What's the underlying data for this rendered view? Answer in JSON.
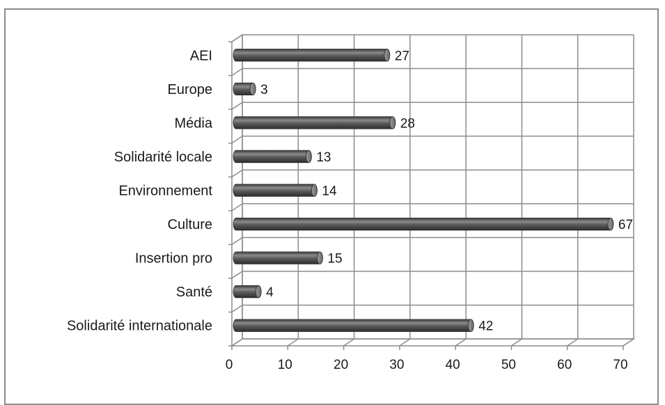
{
  "chart_data": {
    "type": "bar",
    "orientation": "horizontal",
    "style": "3d-cylinder",
    "categories": [
      "AEI",
      "Europe",
      "Média",
      "Solidarité locale",
      "Environnement",
      "Culture",
      "Insertion pro",
      "Santé",
      "Solidarité internationale"
    ],
    "values": [
      27,
      3,
      28,
      13,
      14,
      67,
      15,
      4,
      42
    ],
    "xlim": [
      0,
      70
    ],
    "x_ticks": [
      0,
      10,
      20,
      30,
      40,
      50,
      60,
      70
    ],
    "grid": true,
    "legend": "none",
    "bar_color": "#555555",
    "title": "",
    "xlabel": "",
    "ylabel": ""
  }
}
